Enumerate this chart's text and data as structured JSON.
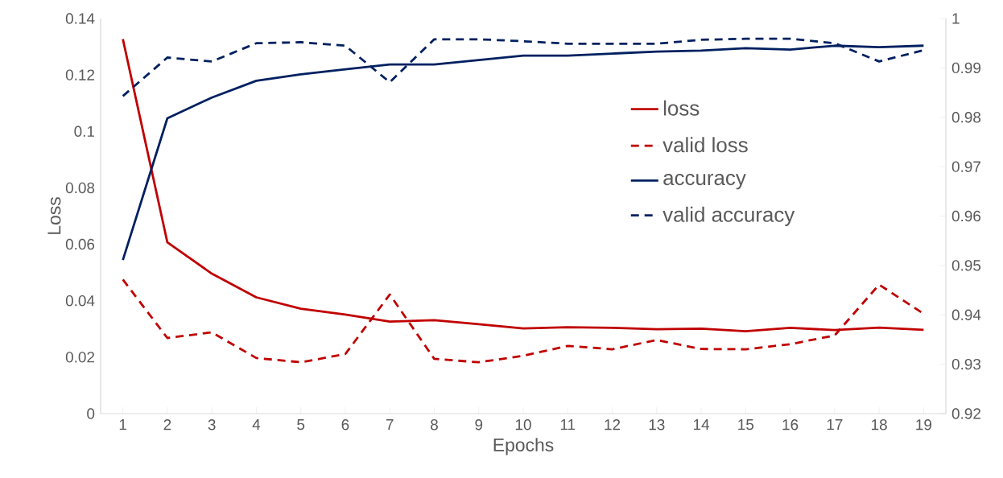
{
  "chart_data": {
    "type": "line",
    "xlabel": "Epochs",
    "ylabel": "Loss",
    "categories": [
      "1",
      "2",
      "3",
      "4",
      "5",
      "6",
      "7",
      "8",
      "9",
      "10",
      "11",
      "12",
      "13",
      "14",
      "15",
      "16",
      "17",
      "18",
      "19"
    ],
    "series": [
      {
        "name": "loss",
        "color": "#c00000",
        "line_style": "solid",
        "values": [
          0.1327,
          0.0607,
          0.0496,
          0.0412,
          0.0372,
          0.0351,
          0.0326,
          0.0331,
          0.0317,
          0.0302,
          0.0306,
          0.0304,
          0.0299,
          0.0301,
          0.0292,
          0.0304,
          0.0296,
          0.0305,
          0.0297
        ]
      },
      {
        "name": "valid loss",
        "color": "#c00000",
        "line_style": "dashed",
        "values": [
          0.0475,
          0.0268,
          0.0288,
          0.0197,
          0.0182,
          0.0211,
          0.0422,
          0.0194,
          0.0182,
          0.0205,
          0.024,
          0.0228,
          0.0261,
          0.0229,
          0.0228,
          0.0246,
          0.0277,
          0.0457,
          0.0354
        ]
      },
      {
        "name": "accuracy",
        "color": "#002060",
        "line_style": "solid",
        "axis": "y2",
        "values": [
          0.9511,
          0.9798,
          0.984,
          0.9874,
          0.9887,
          0.9897,
          0.9907,
          0.9907,
          0.9916,
          0.9925,
          0.9925,
          0.9929,
          0.9933,
          0.9935,
          0.994,
          0.9937,
          0.9945,
          0.9942,
          0.9945
        ]
      },
      {
        "name": "valid accuracy",
        "color": "#002060",
        "line_style": "dashed",
        "axis": "y2",
        "values": [
          0.9843,
          0.9921,
          0.9913,
          0.995,
          0.9952,
          0.9945,
          0.9871,
          0.9958,
          0.9958,
          0.9954,
          0.9949,
          0.9949,
          0.9949,
          0.9957,
          0.9959,
          0.9959,
          0.995,
          0.9913,
          0.9936
        ]
      }
    ],
    "ylim": [
      0,
      0.14
    ],
    "yticks": [
      0,
      0.02,
      0.04,
      0.06,
      0.08,
      0.1,
      0.12,
      0.14
    ],
    "y2lim": [
      0.92,
      1
    ],
    "y2ticks": [
      0.92,
      0.93,
      0.94,
      0.95,
      0.96,
      0.97,
      0.98,
      0.99,
      1
    ],
    "legend": "right"
  }
}
